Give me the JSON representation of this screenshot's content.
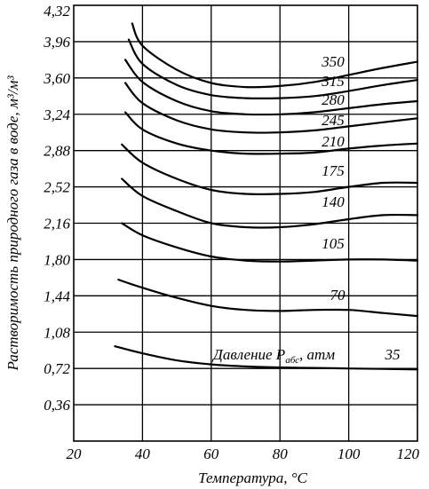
{
  "chart_data": {
    "type": "line",
    "xlabel": "Температура, °C",
    "ylabel": "Растворимость природного газа в воде, м³/м³",
    "xlim": [
      20,
      120
    ],
    "ylim": [
      0,
      4.32
    ],
    "x_ticks": [
      "20",
      "40",
      "60",
      "80",
      "100",
      "120"
    ],
    "y_ticks": [
      "0,36",
      "0,72",
      "1,08",
      "1,44",
      "1,80",
      "2,16",
      "2,52",
      "2,88",
      "3,24",
      "3,60",
      "3,96",
      "4,32"
    ],
    "grid": true,
    "legend": {
      "label": "Давление P",
      "subscript": "абс",
      "suffix": ", атм"
    },
    "series": [
      {
        "name": "35",
        "x": [
          32,
          40,
          50,
          60,
          70,
          80,
          90,
          100,
          110,
          120
        ],
        "y": [
          0.94,
          0.87,
          0.8,
          0.76,
          0.74,
          0.73,
          0.725,
          0.72,
          0.715,
          0.71
        ]
      },
      {
        "name": "70",
        "x": [
          33,
          40,
          50,
          60,
          70,
          80,
          90,
          100,
          110,
          120
        ],
        "y": [
          1.6,
          1.52,
          1.42,
          1.34,
          1.3,
          1.29,
          1.3,
          1.3,
          1.27,
          1.24
        ]
      },
      {
        "name": "105",
        "x": [
          34,
          40,
          50,
          60,
          70,
          80,
          90,
          100,
          110,
          120
        ],
        "y": [
          2.16,
          2.04,
          1.92,
          1.83,
          1.79,
          1.78,
          1.79,
          1.8,
          1.8,
          1.79
        ]
      },
      {
        "name": "140",
        "x": [
          34,
          40,
          50,
          60,
          70,
          80,
          90,
          100,
          110,
          120
        ],
        "y": [
          2.6,
          2.43,
          2.28,
          2.16,
          2.12,
          2.12,
          2.15,
          2.2,
          2.24,
          2.24
        ]
      },
      {
        "name": "175",
        "x": [
          34,
          40,
          50,
          60,
          70,
          80,
          90,
          100,
          110,
          120
        ],
        "y": [
          2.94,
          2.76,
          2.6,
          2.49,
          2.45,
          2.45,
          2.47,
          2.52,
          2.56,
          2.56
        ]
      },
      {
        "name": "210",
        "x": [
          35,
          40,
          50,
          60,
          70,
          80,
          90,
          100,
          110,
          120
        ],
        "y": [
          3.26,
          3.09,
          2.95,
          2.88,
          2.85,
          2.85,
          2.86,
          2.9,
          2.93,
          2.95
        ]
      },
      {
        "name": "245",
        "x": [
          35,
          40,
          50,
          60,
          70,
          80,
          90,
          100,
          110,
          120
        ],
        "y": [
          3.55,
          3.35,
          3.18,
          3.09,
          3.06,
          3.06,
          3.08,
          3.12,
          3.16,
          3.2
        ]
      },
      {
        "name": "280",
        "x": [
          35,
          40,
          50,
          60,
          70,
          80,
          90,
          100,
          110,
          120
        ],
        "y": [
          3.78,
          3.56,
          3.37,
          3.27,
          3.24,
          3.24,
          3.26,
          3.3,
          3.34,
          3.37
        ]
      },
      {
        "name": "315",
        "x": [
          36,
          40,
          50,
          60,
          70,
          80,
          90,
          100,
          110,
          120
        ],
        "y": [
          3.98,
          3.74,
          3.53,
          3.43,
          3.4,
          3.4,
          3.42,
          3.47,
          3.53,
          3.58
        ]
      },
      {
        "name": "350",
        "x": [
          37,
          40,
          50,
          60,
          70,
          80,
          90,
          100,
          110,
          120
        ],
        "y": [
          4.14,
          3.92,
          3.68,
          3.55,
          3.51,
          3.52,
          3.56,
          3.63,
          3.7,
          3.76
        ]
      }
    ]
  }
}
